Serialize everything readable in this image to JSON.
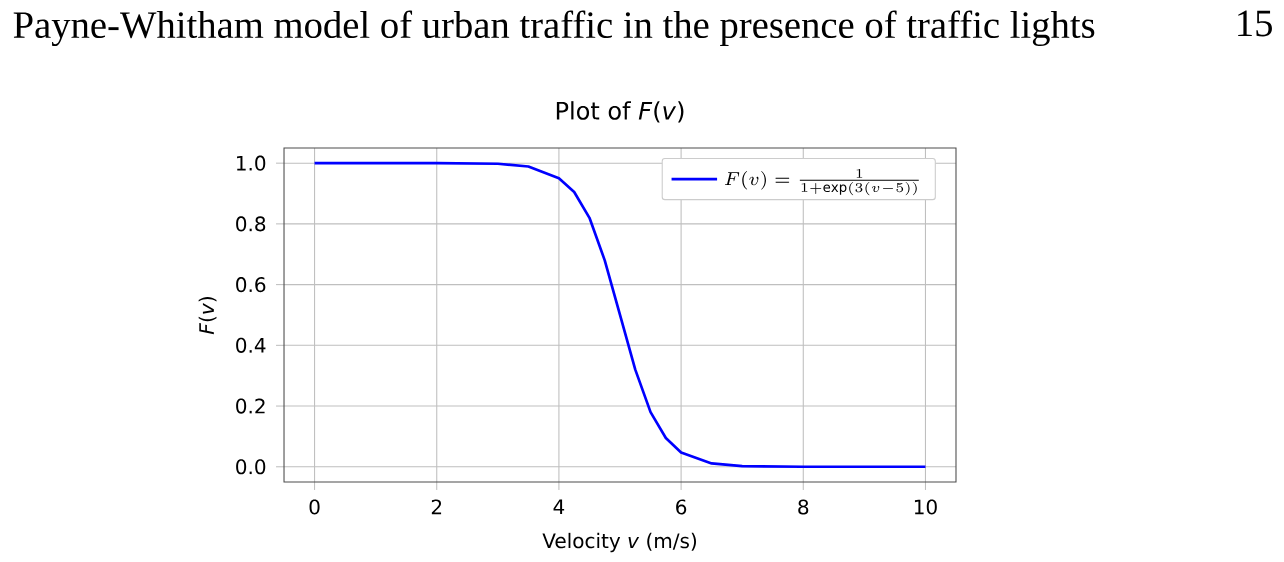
{
  "chart_data": {
    "type": "line",
    "title": "Plot of *F*(*v*)",
    "xlabel": "Velocity *v* (m/s)",
    "ylabel": "*F*(*v*)",
    "annotations": [
      "Payne-Whitham model of urban traffic in the presence of traffic lights",
      "15"
    ],
    "x": [
      0,
      1,
      2,
      3,
      3.5,
      4,
      4.25,
      4.5,
      4.75,
      5,
      5.25,
      5.5,
      5.75,
      6,
      6.5,
      7,
      8,
      10
    ],
    "series": [
      {
        "name": "F(v) = \\frac{1}{1+\\exp(3(v-5))}",
        "color": "#0000ff",
        "values": [
          1,
          1,
          1,
          0.998,
          0.989,
          0.95,
          0.905,
          0.82,
          0.68,
          0.5,
          0.32,
          0.18,
          0.095,
          0.047,
          0.011,
          0.002,
          0,
          0
        ]
      }
    ],
    "xlim": [
      -0.5,
      10.5
    ],
    "ylim": [
      -0.05,
      1.05
    ],
    "xticks": [
      0,
      2,
      4,
      6,
      8,
      10
    ],
    "yticks": [
      {
        "value": 0,
        "label": "0.0"
      },
      {
        "value": 0.2,
        "label": "0.2"
      },
      {
        "value": 0.4,
        "label": "0.4"
      },
      {
        "value": 0.6,
        "label": "0.6"
      },
      {
        "value": 0.8,
        "label": "0.8"
      },
      {
        "value": 1,
        "label": "1.0"
      }
    ],
    "grid": true,
    "legend": "top right",
    "marker": "none",
    "line_style": "solid"
  }
}
